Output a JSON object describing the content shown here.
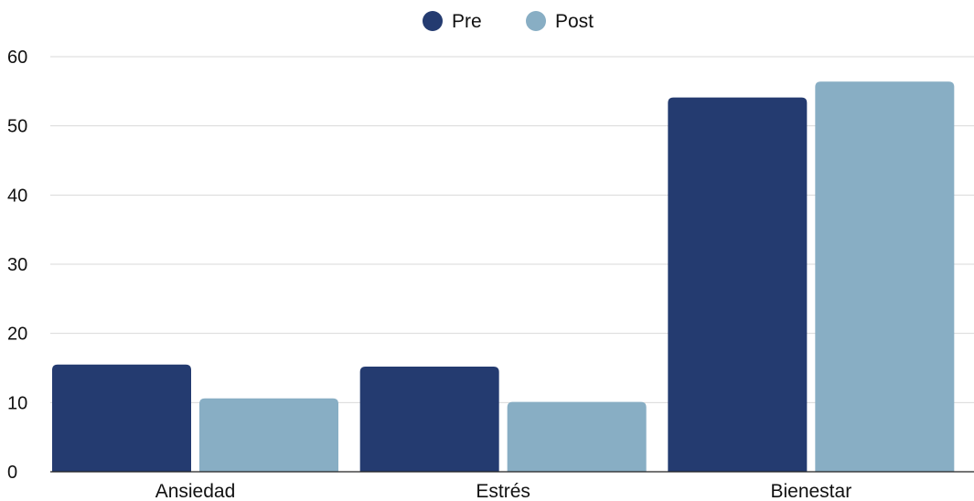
{
  "chart_data": {
    "type": "bar",
    "title": "",
    "xlabel": "",
    "ylabel": "",
    "categories": [
      "Ansiedad",
      "Estrés",
      "Bienestar"
    ],
    "series": [
      {
        "name": "Pre",
        "values": [
          15.5,
          15.2,
          54.1
        ],
        "color": "#243b70"
      },
      {
        "name": "Post",
        "values": [
          10.6,
          10.1,
          56.4
        ],
        "color": "#88aec4"
      }
    ],
    "ylim": [
      0,
      60
    ],
    "yticks": [
      "0",
      "10",
      "20",
      "30",
      "40",
      "50",
      "60"
    ],
    "grid": true,
    "legend_position": "top-center"
  }
}
